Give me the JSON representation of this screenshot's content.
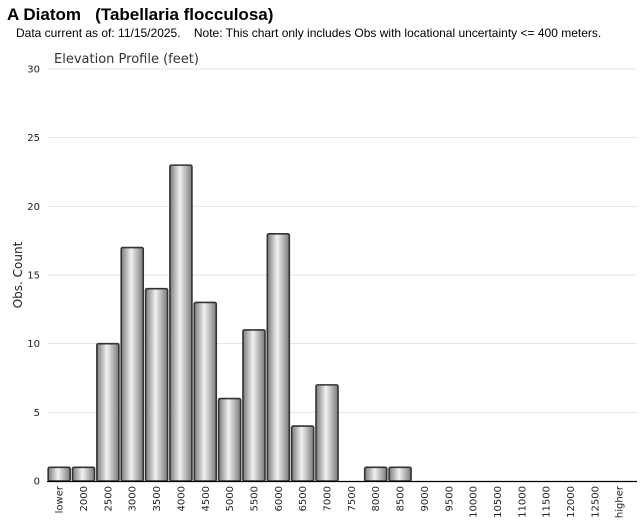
{
  "header": {
    "title": "A Diatom   (Tabellaria flocculosa)",
    "subtitle": "Data current as of: 11/15/2025.    Note: This chart only includes Obs with locational uncertainty <= 400 meters."
  },
  "chart_data": {
    "type": "bar",
    "title": "Elevation Profile (feet)",
    "xlabel": "",
    "ylabel": "Obs. Count",
    "ylim": [
      0,
      30
    ],
    "yticks": [
      0,
      5,
      10,
      15,
      20,
      25,
      30
    ],
    "grid": true,
    "legend": "none",
    "bar_style": "gray gradient with dark outline",
    "colors": {
      "bar_outline": "#333333",
      "bar_light": "#f2f2f2",
      "bar_dark": "#7a7a7a",
      "grid": "#e3e3e3"
    },
    "categories": [
      "lower",
      "2000",
      "2500",
      "3000",
      "3500",
      "4000",
      "4500",
      "5000",
      "5500",
      "6000",
      "6500",
      "7000",
      "7500",
      "8000",
      "8500",
      "9000",
      "9500",
      "10000",
      "10500",
      "11000",
      "11500",
      "12000",
      "12500",
      "higher"
    ],
    "values": [
      1,
      1,
      10,
      17,
      14,
      23,
      13,
      6,
      11,
      18,
      4,
      7,
      0,
      1,
      1,
      0,
      0,
      0,
      0,
      0,
      0,
      0,
      0,
      0
    ]
  }
}
